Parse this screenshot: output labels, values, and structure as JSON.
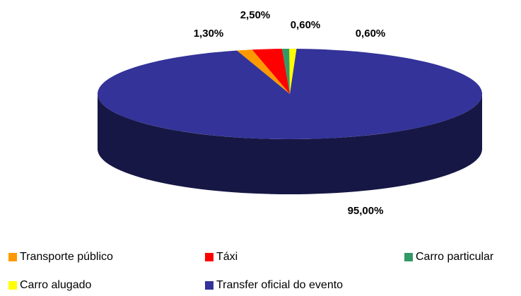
{
  "chart_data": {
    "type": "pie",
    "categories": [
      "Transporte público",
      "Táxi",
      "Carro particular",
      "Carro alugado",
      "Transfer oficial do evento"
    ],
    "values": [
      1.3,
      2.5,
      0.6,
      0.6,
      95
    ],
    "value_labels": [
      "1,30%",
      "2,50%",
      "0,60%",
      "0,60%",
      "95,00%"
    ],
    "colors": [
      "#ff9900",
      "#ff0000",
      "#339966",
      "#ffff00",
      "#333399"
    ]
  }
}
